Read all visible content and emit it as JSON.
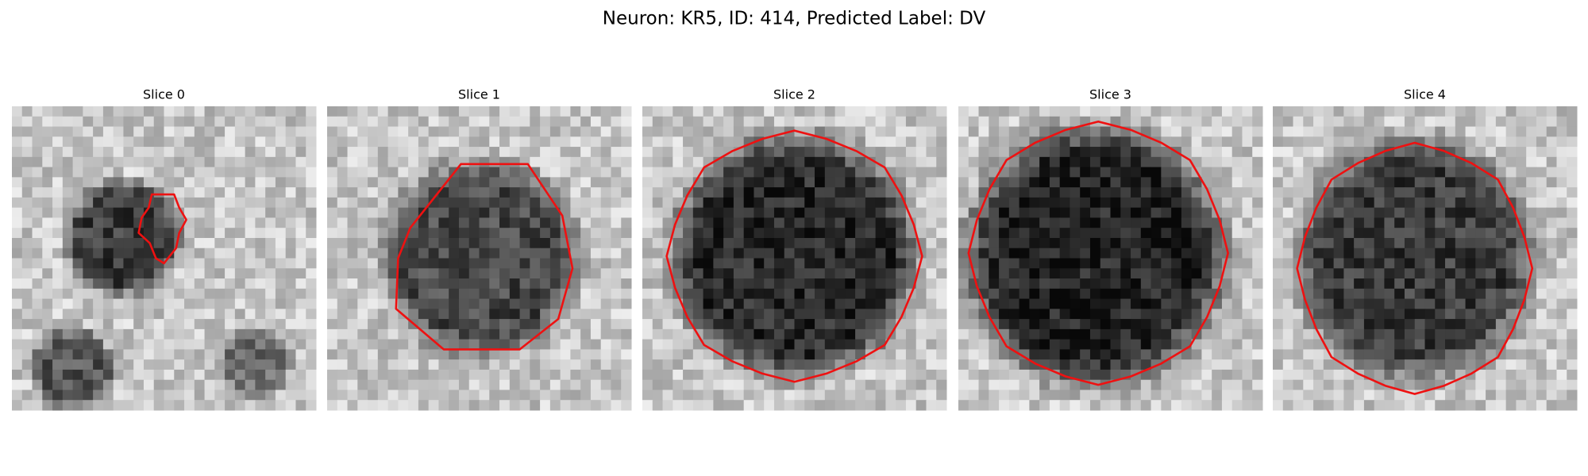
{
  "title": "Neuron: KR5, ID: 414, Predicted Label: DV",
  "panels": [
    {
      "title": "Slice 0"
    },
    {
      "title": "Slice 1"
    },
    {
      "title": "Slice 2"
    },
    {
      "title": "Slice 3"
    },
    {
      "title": "Slice 4"
    }
  ]
}
